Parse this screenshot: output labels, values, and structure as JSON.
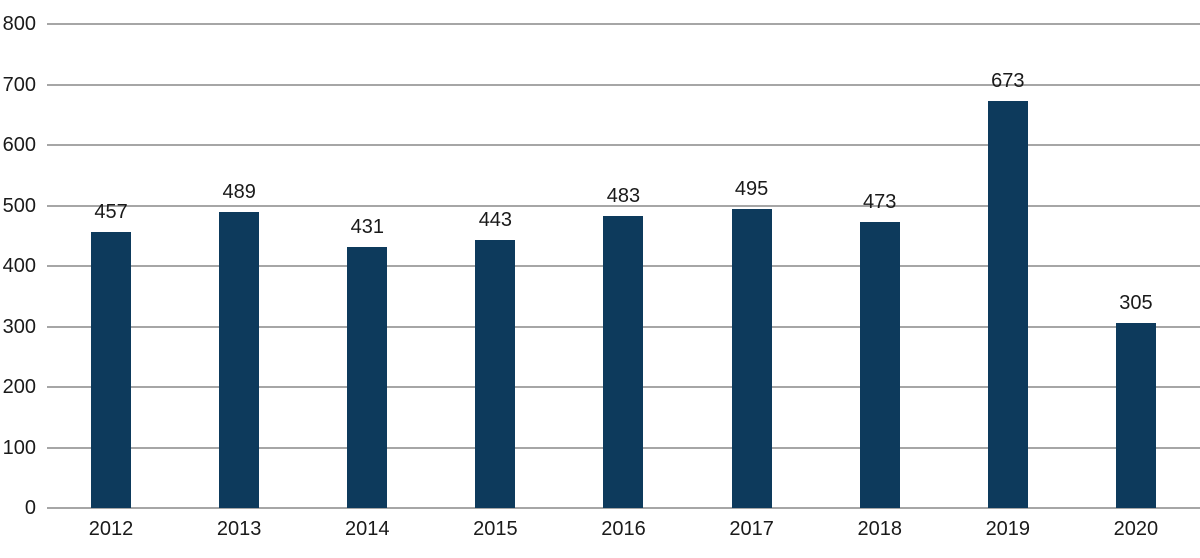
{
  "chart_data": {
    "type": "bar",
    "categories": [
      "2012",
      "2013",
      "2014",
      "2015",
      "2016",
      "2017",
      "2018",
      "2019",
      "2020"
    ],
    "values": [
      457,
      489,
      431,
      443,
      483,
      495,
      473,
      673,
      305
    ],
    "title": "",
    "xlabel": "",
    "ylabel": "",
    "ylim": [
      0,
      800
    ],
    "yticks": [
      0,
      100,
      200,
      300,
      400,
      500,
      600,
      700,
      800
    ],
    "grid": true,
    "legend": false,
    "data_labels": true,
    "bar_color": "#0D3A5C",
    "gridline_color": "#A6A6A6",
    "text_color": "#1A1A1A"
  }
}
